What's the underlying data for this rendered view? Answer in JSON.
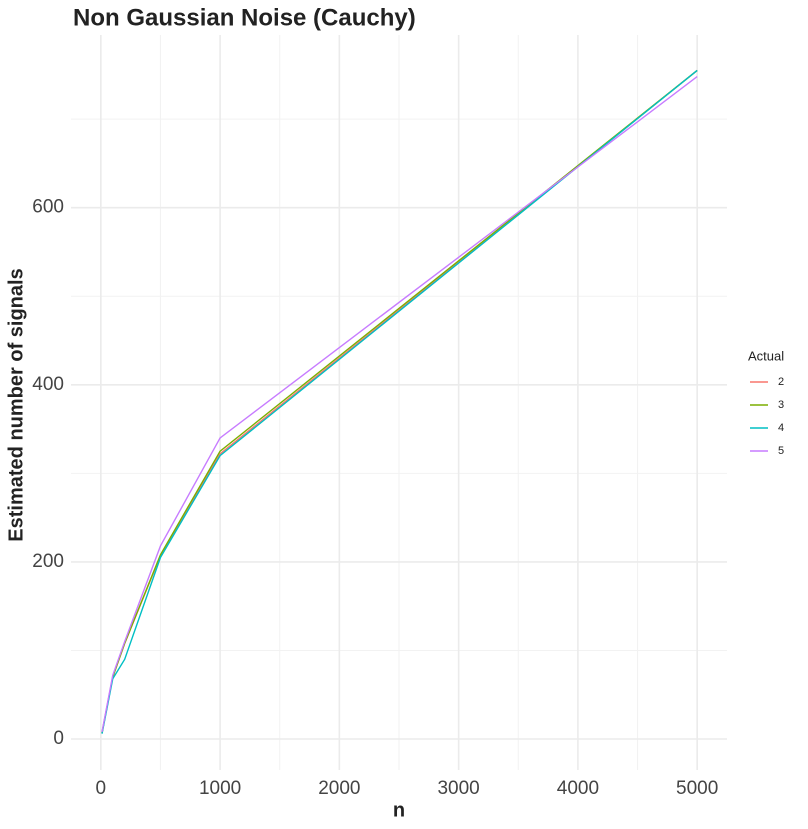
{
  "chart_data": {
    "type": "line",
    "title": "Non Gaussian Noise (Cauchy)",
    "x_label": "n",
    "y_label": "Estimated number of signals",
    "x": [
      10,
      100,
      200,
      500,
      1000,
      5000
    ],
    "series": [
      {
        "name": "2",
        "color": "#F8766D",
        "values": [
          7,
          70,
          108,
          207,
          322,
          755
        ]
      },
      {
        "name": "3",
        "color": "#7CAE00",
        "values": [
          7,
          70,
          108,
          208,
          325,
          755
        ]
      },
      {
        "name": "4",
        "color": "#00BFC4",
        "values": [
          6,
          68,
          90,
          205,
          320,
          755
        ]
      },
      {
        "name": "5",
        "color": "#C77CFF",
        "values": [
          8,
          72,
          110,
          218,
          340,
          748
        ]
      }
    ],
    "legend_title": "Actual",
    "legend": "right",
    "xlim": [
      -250,
      5250
    ],
    "xticks": [
      0,
      1000,
      2000,
      3000,
      4000,
      5000
    ],
    "ylim": [
      -35,
      795
    ],
    "yticks": [
      0,
      200,
      400,
      600
    ],
    "grid": true,
    "minor_grid": true
  }
}
